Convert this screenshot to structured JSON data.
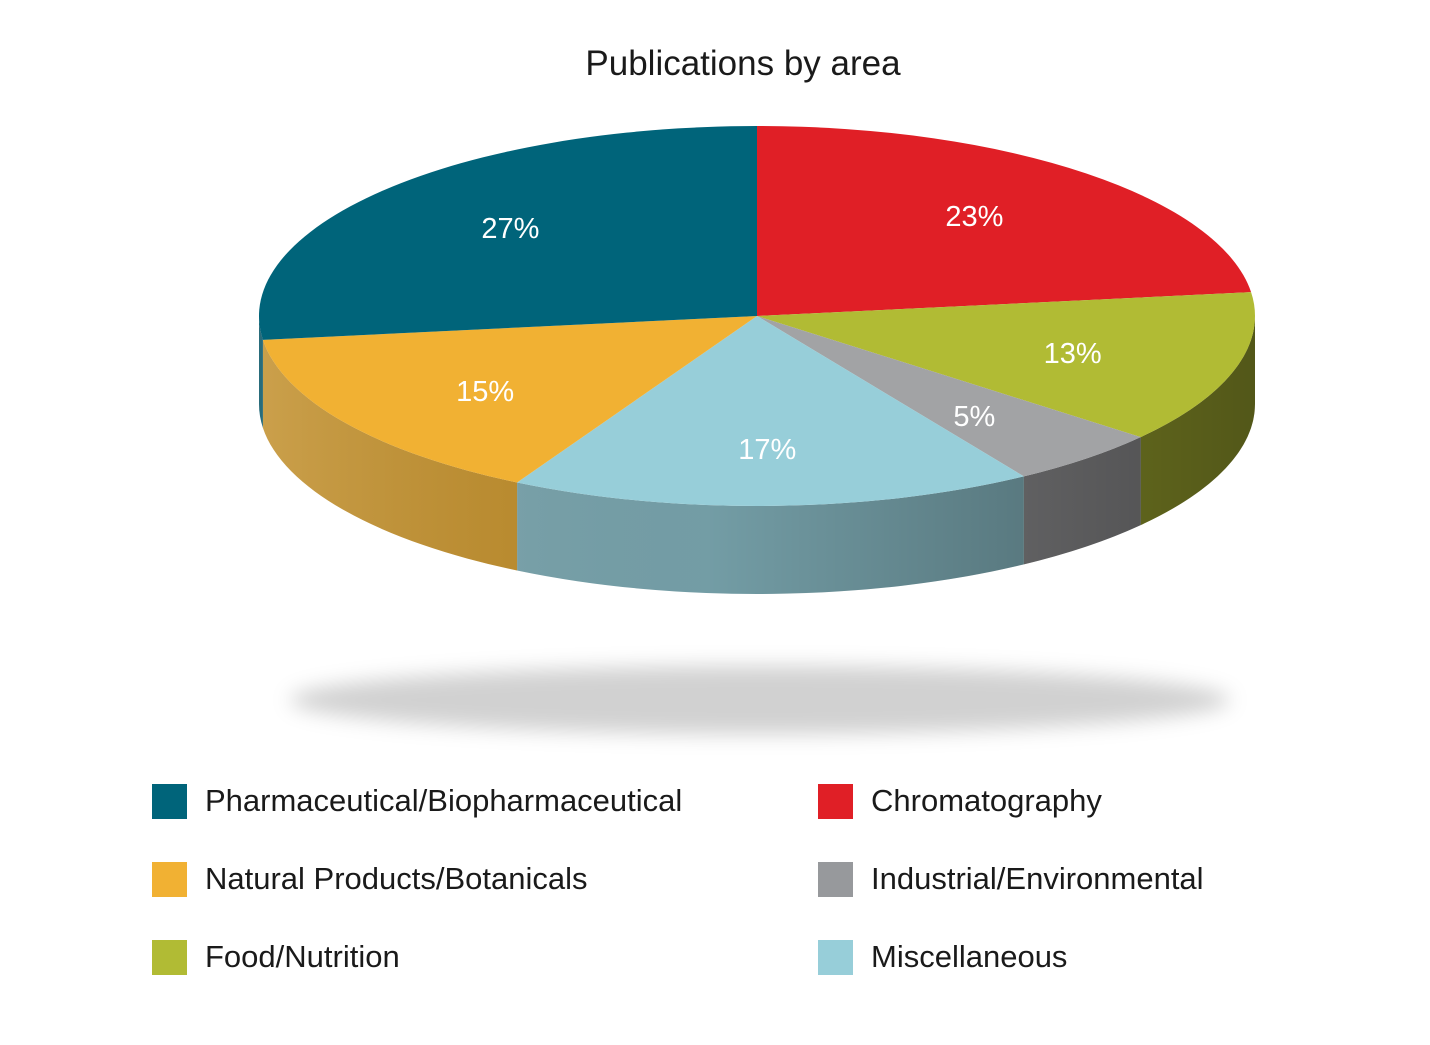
{
  "chart_data": {
    "type": "pie",
    "title": "Publications by area",
    "slices": [
      {
        "name": "Chromatography",
        "value": 23,
        "label": "23%",
        "color": "#e01f26"
      },
      {
        "name": "Food/Nutrition",
        "value": 13,
        "label": "13%",
        "color": "#b1bb34"
      },
      {
        "name": "Industrial/Environmental",
        "value": 5,
        "label": "5%",
        "color": "#a2a3a5"
      },
      {
        "name": "Miscellaneous",
        "value": 17,
        "label": "17%",
        "color": "#97ced9"
      },
      {
        "name": "Natural Products/Botanicals",
        "value": 15,
        "label": "15%",
        "color": "#f1b133"
      },
      {
        "name": "Pharmaceutical/Biopharmaceutical",
        "value": 27,
        "label": "27%",
        "color": "#00647a"
      }
    ],
    "legend": {
      "placement": "bottom",
      "entries": [
        {
          "label": "Pharmaceutical/Biopharmaceutical",
          "color": "#00647a"
        },
        {
          "label": "Chromatography",
          "color": "#e01f26"
        },
        {
          "label": "Natural Products/Botanicals",
          "color": "#f1b133"
        },
        {
          "label": "Industrial/Environmental",
          "color": "#97999c"
        },
        {
          "label": "Food/Nutrition",
          "color": "#b1bb34"
        },
        {
          "label": "Miscellaneous",
          "color": "#97ced9"
        }
      ]
    }
  }
}
